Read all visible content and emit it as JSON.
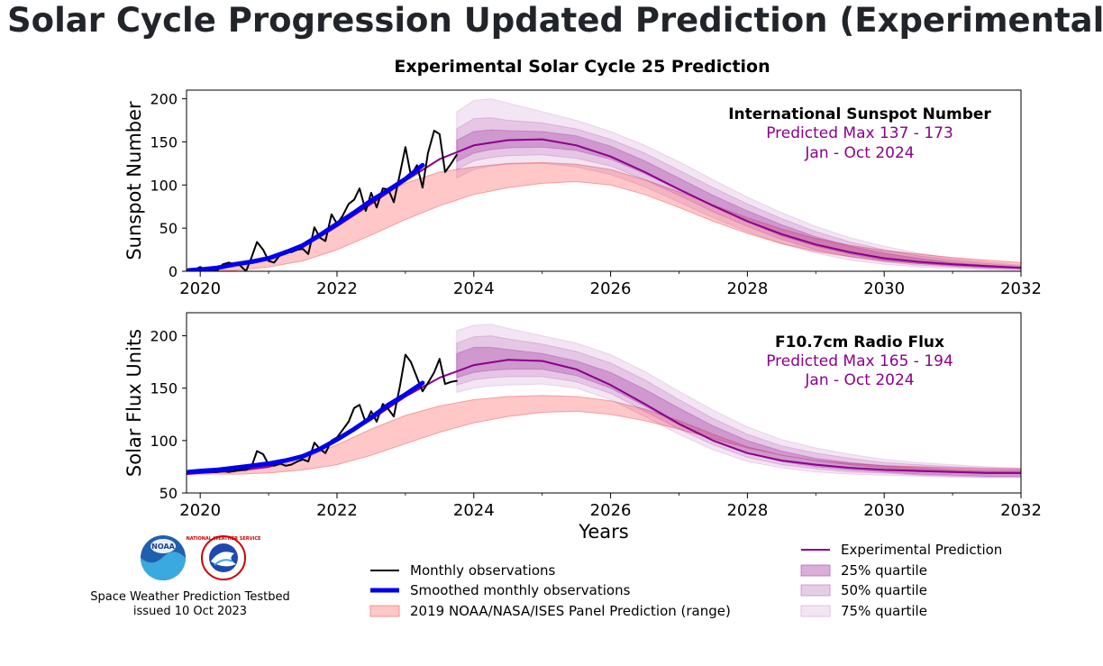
{
  "page": {
    "title": "Solar Cycle Progression Updated Prediction (Experimental)"
  },
  "figure": {
    "suptitle": "Experimental Solar Cycle 25 Prediction",
    "credit_line1": "Space Weather Prediction Testbed",
    "credit_line2": "issued 10 Oct 2023",
    "logos": [
      "NOAA",
      "NATIONAL WEATHER SERVICE"
    ]
  },
  "legend": {
    "monthly": "Monthly observations",
    "smoothed": "Smoothed monthly observations",
    "panel": "2019 NOAA/NASA/ISES Panel Prediction (range)",
    "experimental": "Experimental Prediction",
    "q25": "25% quartile",
    "q50": "50% quartile",
    "q75": "75% quartile"
  },
  "colors": {
    "observations": "#000000",
    "smoothed": "#0000ee",
    "panel": "#ff9999",
    "prediction": "#8b008b",
    "quartile": "#9a2a9a"
  },
  "chart_data": [
    {
      "type": "line",
      "title": "International Sunspot Number",
      "annotation_line1": "Predicted Max 137 - 173",
      "annotation_line2": "Jan - Oct 2024",
      "xlabel": "",
      "ylabel": "Sunspot Number",
      "xlim": [
        2019.8,
        2032
      ],
      "ylim": [
        0,
        210
      ],
      "xticks": [
        2020,
        2022,
        2024,
        2026,
        2028,
        2030,
        2032
      ],
      "yticks": [
        0,
        50,
        100,
        150,
        200
      ],
      "series": [
        {
          "name": "Monthly observations",
          "x": [
            2019.83,
            2019.92,
            2020.0,
            2020.08,
            2020.17,
            2020.25,
            2020.33,
            2020.42,
            2020.5,
            2020.58,
            2020.67,
            2020.75,
            2020.83,
            2020.92,
            2021.0,
            2021.08,
            2021.17,
            2021.25,
            2021.33,
            2021.42,
            2021.5,
            2021.58,
            2021.67,
            2021.75,
            2021.83,
            2021.92,
            2022.0,
            2022.08,
            2022.17,
            2022.25,
            2022.33,
            2022.42,
            2022.5,
            2022.58,
            2022.67,
            2022.75,
            2022.83,
            2022.92,
            2023.0,
            2023.08,
            2023.17,
            2023.25,
            2023.33,
            2023.42,
            2023.5,
            2023.58,
            2023.67,
            2023.75
          ],
          "values": [
            1,
            2,
            5,
            1,
            2,
            1,
            8,
            10,
            8,
            7,
            0,
            16,
            34,
            25,
            12,
            10,
            19,
            24,
            22,
            25,
            26,
            20,
            51,
            39,
            35,
            66,
            55,
            64,
            78,
            83,
            96,
            70,
            91,
            74,
            96,
            95,
            80,
            113,
            144,
            111,
            123,
            97,
            137,
            163,
            159,
            115,
            125,
            135
          ]
        },
        {
          "name": "Smoothed monthly observations",
          "x": [
            2019.83,
            2020.0,
            2020.25,
            2020.5,
            2020.75,
            2021.0,
            2021.25,
            2021.5,
            2021.75,
            2022.0,
            2022.25,
            2022.5,
            2022.75,
            2023.0,
            2023.25
          ],
          "values": [
            1,
            2,
            4,
            8,
            11,
            15,
            22,
            30,
            42,
            55,
            68,
            82,
            94,
            107,
            123
          ]
        },
        {
          "name": "Experimental Prediction",
          "x": [
            2019.8,
            2020.0,
            2020.5,
            2021.0,
            2021.5,
            2022.0,
            2022.5,
            2023.0,
            2023.5,
            2024.0,
            2024.5,
            2025.0,
            2025.5,
            2026.0,
            2026.5,
            2027.0,
            2027.5,
            2028.0,
            2028.5,
            2029.0,
            2029.5,
            2030.0,
            2030.5,
            2031.0,
            2031.5,
            2032.0
          ],
          "values": [
            1,
            2,
            7,
            14,
            28,
            52,
            78,
            105,
            130,
            146,
            152,
            153,
            146,
            133,
            115,
            95,
            76,
            58,
            43,
            31,
            22,
            15,
            11,
            8,
            6,
            4
          ]
        }
      ],
      "bands": [
        {
          "name": "2019 NOAA/NASA/ISES Panel Prediction (range)",
          "x": [
            2019.8,
            2020.0,
            2020.5,
            2021.0,
            2021.5,
            2022.0,
            2022.5,
            2023.0,
            2023.5,
            2024.0,
            2024.5,
            2025.0,
            2025.5,
            2026.0,
            2026.5,
            2027.0,
            2027.5,
            2028.0,
            2028.5,
            2029.0,
            2029.5,
            2030.0,
            2030.5,
            2031.0,
            2031.5,
            2032.0
          ],
          "lower": [
            0,
            0,
            1,
            5,
            12,
            25,
            42,
            60,
            76,
            89,
            97,
            102,
            104,
            100,
            89,
            74,
            58,
            44,
            32,
            23,
            17,
            12,
            9,
            7,
            5,
            4
          ],
          "upper": [
            1,
            2,
            5,
            14,
            30,
            56,
            82,
            102,
            115,
            121,
            125,
            126,
            124,
            118,
            106,
            92,
            77,
            62,
            49,
            38,
            30,
            24,
            20,
            16,
            13,
            10
          ]
        },
        {
          "name": "75% quartile",
          "x": [
            2023.75,
            2024.0,
            2024.25,
            2024.5,
            2025.0,
            2025.5,
            2026.0,
            2026.5,
            2027.0,
            2027.5,
            2028.0,
            2028.5,
            2029.0,
            2029.5,
            2030.0,
            2030.5,
            2031.0,
            2031.5,
            2032.0
          ],
          "lower": [
            108,
            118,
            122,
            124,
            125,
            121,
            112,
            98,
            80,
            62,
            46,
            32,
            21,
            13,
            8,
            5,
            3,
            2,
            1
          ],
          "upper": [
            185,
            198,
            200,
            195,
            185,
            175,
            162,
            146,
            127,
            106,
            86,
            68,
            52,
            39,
            29,
            21,
            15,
            11,
            7
          ]
        },
        {
          "name": "50% quartile",
          "x": [
            2023.75,
            2024.0,
            2024.25,
            2024.5,
            2025.0,
            2025.5,
            2026.0,
            2026.5,
            2027.0,
            2027.5,
            2028.0,
            2028.5,
            2029.0,
            2029.5,
            2030.0,
            2030.5,
            2031.0,
            2031.5,
            2032.0
          ],
          "lower": [
            118,
            128,
            132,
            134,
            135,
            131,
            122,
            106,
            88,
            69,
            52,
            37,
            25,
            17,
            11,
            7,
            5,
            3,
            2
          ],
          "upper": [
            165,
            177,
            178,
            175,
            172,
            165,
            153,
            137,
            117,
            97,
            78,
            61,
            46,
            34,
            25,
            18,
            13,
            9,
            6
          ]
        },
        {
          "name": "25% quartile",
          "x": [
            2023.75,
            2024.0,
            2024.25,
            2024.5,
            2025.0,
            2025.5,
            2026.0,
            2026.5,
            2027.0,
            2027.5,
            2028.0,
            2028.5,
            2029.0,
            2029.5,
            2030.0,
            2030.5,
            2031.0,
            2031.5,
            2032.0
          ],
          "lower": [
            127,
            137,
            141,
            143,
            144,
            140,
            130,
            113,
            94,
            75,
            57,
            41,
            29,
            20,
            13,
            9,
            6,
            4,
            3
          ],
          "upper": [
            152,
            162,
            164,
            163,
            162,
            157,
            145,
            128,
            108,
            88,
            70,
            54,
            40,
            29,
            21,
            15,
            10,
            7,
            5
          ]
        }
      ]
    },
    {
      "type": "line",
      "title": "F10.7cm Radio Flux",
      "annotation_line1": "Predicted Max 165 - 194",
      "annotation_line2": "Jan - Oct 2024",
      "xlabel": "Years",
      "ylabel": "Solar Flux Units",
      "xlim": [
        2019.8,
        2032
      ],
      "ylim": [
        50,
        222
      ],
      "xticks": [
        2020,
        2022,
        2024,
        2026,
        2028,
        2030,
        2032
      ],
      "yticks": [
        50,
        100,
        150,
        200
      ],
      "series": [
        {
          "name": "Monthly observations",
          "x": [
            2019.83,
            2019.92,
            2020.0,
            2020.08,
            2020.17,
            2020.25,
            2020.33,
            2020.42,
            2020.5,
            2020.58,
            2020.67,
            2020.75,
            2020.83,
            2020.92,
            2021.0,
            2021.08,
            2021.17,
            2021.25,
            2021.33,
            2021.42,
            2021.5,
            2021.58,
            2021.67,
            2021.75,
            2021.83,
            2021.92,
            2022.0,
            2022.08,
            2022.17,
            2022.25,
            2022.33,
            2022.42,
            2022.5,
            2022.58,
            2022.67,
            2022.75,
            2022.83,
            2022.92,
            2023.0,
            2023.08,
            2023.17,
            2023.25,
            2023.33,
            2023.42,
            2023.5,
            2023.58,
            2023.67,
            2023.75
          ],
          "values": [
            70,
            71,
            72,
            70,
            70,
            70,
            71,
            70,
            71,
            72,
            72,
            75,
            90,
            87,
            77,
            76,
            78,
            76,
            77,
            80,
            82,
            80,
            98,
            92,
            88,
            100,
            103,
            110,
            118,
            131,
            134,
            117,
            128,
            118,
            135,
            130,
            123,
            152,
            182,
            175,
            160,
            147,
            155,
            165,
            178,
            154,
            156,
            157
          ]
        },
        {
          "name": "Smoothed monthly observations",
          "x": [
            2019.83,
            2020.0,
            2020.25,
            2020.5,
            2020.75,
            2021.0,
            2021.25,
            2021.5,
            2021.75,
            2022.0,
            2022.25,
            2022.5,
            2022.75,
            2023.0,
            2023.25
          ],
          "values": [
            70,
            71,
            72,
            74,
            76,
            78,
            81,
            85,
            92,
            101,
            111,
            122,
            134,
            144,
            155
          ]
        },
        {
          "name": "Experimental Prediction",
          "x": [
            2019.8,
            2020.0,
            2020.5,
            2021.0,
            2021.5,
            2022.0,
            2022.5,
            2023.0,
            2023.5,
            2024.0,
            2024.5,
            2025.0,
            2025.5,
            2026.0,
            2026.5,
            2027.0,
            2027.5,
            2028.0,
            2028.5,
            2029.0,
            2029.5,
            2030.0,
            2030.5,
            2031.0,
            2031.5,
            2032.0
          ],
          "values": [
            68,
            69,
            71,
            75,
            85,
            100,
            120,
            142,
            160,
            172,
            177,
            176,
            168,
            153,
            135,
            116,
            100,
            88,
            81,
            77,
            74,
            72,
            71,
            70,
            69,
            69
          ]
        }
      ],
      "bands": [
        {
          "name": "2019 NOAA/NASA/ISES Panel Prediction (range)",
          "x": [
            2019.8,
            2020.0,
            2020.5,
            2021.0,
            2021.5,
            2022.0,
            2022.5,
            2023.0,
            2023.5,
            2024.0,
            2024.5,
            2025.0,
            2025.5,
            2026.0,
            2026.5,
            2027.0,
            2027.5,
            2028.0,
            2028.5,
            2029.0,
            2029.5,
            2030.0,
            2030.5,
            2031.0,
            2031.5,
            2032.0
          ],
          "lower": [
            68,
            68,
            68,
            69,
            72,
            77,
            86,
            97,
            108,
            117,
            123,
            127,
            128,
            125,
            119,
            111,
            102,
            93,
            86,
            81,
            77,
            74,
            72,
            71,
            70,
            70
          ],
          "upper": [
            68,
            69,
            70,
            74,
            82,
            96,
            111,
            124,
            133,
            139,
            142,
            143,
            142,
            138,
            130,
            119,
            106,
            94,
            86,
            81,
            78,
            76,
            75,
            74,
            73,
            73
          ]
        },
        {
          "name": "75% quartile",
          "x": [
            2023.75,
            2024.0,
            2024.25,
            2024.5,
            2025.0,
            2025.5,
            2026.0,
            2026.5,
            2027.0,
            2027.5,
            2028.0,
            2028.5,
            2029.0,
            2029.5,
            2030.0,
            2030.5,
            2031.0,
            2031.5,
            2032.0
          ],
          "lower": [
            146,
            150,
            152,
            153,
            154,
            150,
            139,
            123,
            106,
            91,
            80,
            74,
            70,
            68,
            67,
            66,
            65,
            65,
            65
          ],
          "upper": [
            205,
            210,
            211,
            207,
            200,
            193,
            182,
            166,
            147,
            129,
            113,
            101,
            93,
            87,
            82,
            79,
            77,
            75,
            74
          ]
        },
        {
          "name": "50% quartile",
          "x": [
            2023.75,
            2024.0,
            2024.25,
            2024.5,
            2025.0,
            2025.5,
            2026.0,
            2026.5,
            2027.0,
            2027.5,
            2028.0,
            2028.5,
            2029.0,
            2029.5,
            2030.0,
            2030.5,
            2031.0,
            2031.5,
            2032.0
          ],
          "lower": [
            153,
            158,
            160,
            161,
            161,
            156,
            145,
            128,
            111,
            96,
            84,
            77,
            73,
            70,
            69,
            67,
            66,
            65,
            65
          ],
          "upper": [
            193,
            199,
            200,
            197,
            192,
            185,
            174,
            158,
            139,
            121,
            106,
            95,
            88,
            83,
            79,
            77,
            75,
            74,
            73
          ]
        },
        {
          "name": "25% quartile",
          "x": [
            2023.75,
            2024.0,
            2024.25,
            2024.5,
            2025.0,
            2025.5,
            2026.0,
            2026.5,
            2027.0,
            2027.5,
            2028.0,
            2028.5,
            2029.0,
            2029.5,
            2030.0,
            2030.5,
            2031.0,
            2031.5,
            2032.0
          ],
          "lower": [
            160,
            165,
            167,
            168,
            168,
            162,
            150,
            133,
            115,
            100,
            88,
            80,
            75,
            72,
            70,
            68,
            67,
            66,
            66
          ],
          "upper": [
            183,
            189,
            189,
            187,
            183,
            176,
            165,
            149,
            131,
            114,
            100,
            90,
            83,
            79,
            76,
            74,
            72,
            71,
            71
          ]
        }
      ]
    }
  ]
}
